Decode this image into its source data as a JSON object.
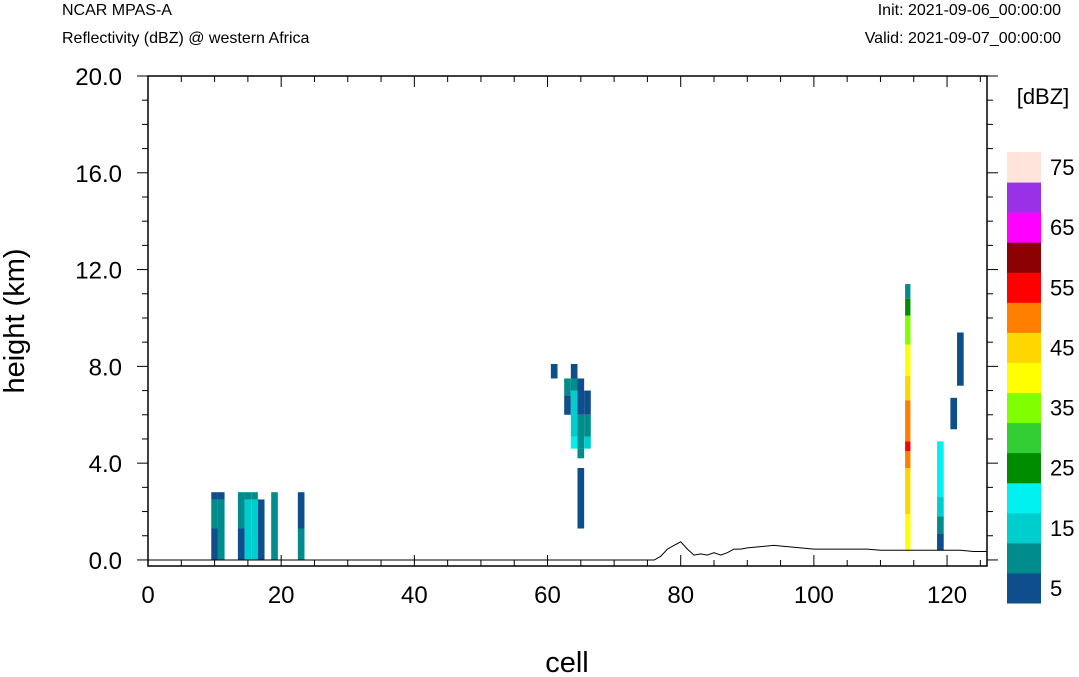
{
  "header": {
    "model": "NCAR MPAS-A",
    "field": "Reflectivity (dBZ) @ western Africa",
    "init": "Init: 2021-09-06_00:00:00",
    "valid": "Valid: 2021-09-07_00:00:00"
  },
  "chart_data": {
    "type": "heatmap",
    "xlabel": "cell",
    "ylabel": "height (km)",
    "xlim": [
      0,
      126
    ],
    "ylim": [
      -0.25,
      20.0
    ],
    "x_ticks": [
      "0",
      "20",
      "40",
      "60",
      "80",
      "100",
      "120"
    ],
    "y_ticks": [
      "0.0",
      "4.0",
      "8.0",
      "12.0",
      "16.0",
      "20.0"
    ],
    "colorbar": {
      "unit": "[dBZ]",
      "bins": [
        {
          "lo": 0,
          "hi": 5,
          "color": "#0f4e8c"
        },
        {
          "lo": 5,
          "hi": 10,
          "color": "#008c8c"
        },
        {
          "lo": 10,
          "hi": 15,
          "color": "#00cdcd"
        },
        {
          "lo": 15,
          "hi": 20,
          "color": "#00f0f0"
        },
        {
          "lo": 20,
          "hi": 25,
          "color": "#008c00"
        },
        {
          "lo": 25,
          "hi": 30,
          "color": "#32cd32"
        },
        {
          "lo": 30,
          "hi": 35,
          "color": "#7fff00"
        },
        {
          "lo": 35,
          "hi": 40,
          "color": "#ffff00"
        },
        {
          "lo": 40,
          "hi": 45,
          "color": "#ffd700"
        },
        {
          "lo": 45,
          "hi": 50,
          "color": "#ff7f00"
        },
        {
          "lo": 50,
          "hi": 55,
          "color": "#ff0000"
        },
        {
          "lo": 55,
          "hi": 60,
          "color": "#8b0000"
        },
        {
          "lo": 60,
          "hi": 65,
          "color": "#ff00ff"
        },
        {
          "lo": 65,
          "hi": 70,
          "color": "#9932e6"
        },
        {
          "lo": 70,
          "hi": 75,
          "color": "#ffe4dc"
        }
      ],
      "labels": [
        "5",
        "15",
        "25",
        "35",
        "45",
        "55",
        "65",
        "75"
      ]
    },
    "cells": [
      {
        "x0": 9.5,
        "x1": 10.5,
        "y0": 0.0,
        "y1": 1.3,
        "dbz": 2.5
      },
      {
        "x0": 9.5,
        "x1": 10.5,
        "y0": 1.3,
        "y1": 2.5,
        "dbz": 7.5
      },
      {
        "x0": 9.5,
        "x1": 10.5,
        "y0": 2.5,
        "y1": 2.8,
        "dbz": 2.5
      },
      {
        "x0": 10.5,
        "x1": 11.5,
        "y0": 0.0,
        "y1": 2.5,
        "dbz": 7.5
      },
      {
        "x0": 10.5,
        "x1": 11.5,
        "y0": 2.5,
        "y1": 2.8,
        "dbz": 2.5
      },
      {
        "x0": 13.5,
        "x1": 14.5,
        "y0": 0.0,
        "y1": 1.3,
        "dbz": 2.5
      },
      {
        "x0": 13.5,
        "x1": 14.5,
        "y0": 1.3,
        "y1": 2.8,
        "dbz": 7.5
      },
      {
        "x0": 14.5,
        "x1": 15.5,
        "y0": 0.0,
        "y1": 2.5,
        "dbz": 12.5
      },
      {
        "x0": 14.5,
        "x1": 15.5,
        "y0": 2.5,
        "y1": 2.8,
        "dbz": 7.5
      },
      {
        "x0": 15.5,
        "x1": 16.5,
        "y0": 0.0,
        "y1": 2.5,
        "dbz": 12.5
      },
      {
        "x0": 15.5,
        "x1": 16.5,
        "y0": 2.5,
        "y1": 2.8,
        "dbz": 7.5
      },
      {
        "x0": 16.5,
        "x1": 17.5,
        "y0": 0.0,
        "y1": 2.5,
        "dbz": 2.5
      },
      {
        "x0": 18.5,
        "x1": 19.5,
        "y0": 0.0,
        "y1": 2.8,
        "dbz": 7.5
      },
      {
        "x0": 22.5,
        "x1": 23.5,
        "y0": 0.0,
        "y1": 1.3,
        "dbz": 7.5
      },
      {
        "x0": 22.5,
        "x1": 23.5,
        "y0": 1.3,
        "y1": 2.8,
        "dbz": 2.5
      },
      {
        "x0": 60.5,
        "x1": 61.5,
        "y0": 7.5,
        "y1": 8.1,
        "dbz": 2.5
      },
      {
        "x0": 62.5,
        "x1": 63.5,
        "y0": 6.0,
        "y1": 6.8,
        "dbz": 2.5
      },
      {
        "x0": 62.5,
        "x1": 63.5,
        "y0": 6.8,
        "y1": 7.5,
        "dbz": 7.5
      },
      {
        "x0": 63.5,
        "x1": 64.5,
        "y0": 4.6,
        "y1": 5.1,
        "dbz": 17.5
      },
      {
        "x0": 63.5,
        "x1": 64.5,
        "y0": 5.1,
        "y1": 7.0,
        "dbz": 12.5
      },
      {
        "x0": 63.5,
        "x1": 64.5,
        "y0": 7.0,
        "y1": 7.5,
        "dbz": 7.5
      },
      {
        "x0": 63.5,
        "x1": 64.5,
        "y0": 7.5,
        "y1": 8.1,
        "dbz": 2.5
      },
      {
        "x0": 64.5,
        "x1": 65.5,
        "y0": 1.3,
        "y1": 3.8,
        "dbz": 2.5
      },
      {
        "x0": 64.5,
        "x1": 65.5,
        "y0": 4.2,
        "y1": 4.6,
        "dbz": 7.5
      },
      {
        "x0": 64.5,
        "x1": 65.5,
        "y0": 4.6,
        "y1": 6.0,
        "dbz": 7.5
      },
      {
        "x0": 64.5,
        "x1": 65.5,
        "y0": 6.0,
        "y1": 7.5,
        "dbz": 2.5
      },
      {
        "x0": 65.5,
        "x1": 66.5,
        "y0": 4.6,
        "y1": 5.1,
        "dbz": 12.5
      },
      {
        "x0": 65.5,
        "x1": 66.5,
        "y0": 5.1,
        "y1": 6.0,
        "dbz": 7.5
      },
      {
        "x0": 65.5,
        "x1": 66.5,
        "y0": 6.0,
        "y1": 7.0,
        "dbz": 2.5
      },
      {
        "x0": 113.7,
        "x1": 114.5,
        "y0": 0.4,
        "y1": 1.9,
        "dbz": 37.5
      },
      {
        "x0": 113.7,
        "x1": 114.5,
        "y0": 1.9,
        "y1": 3.8,
        "dbz": 42.5
      },
      {
        "x0": 113.7,
        "x1": 114.5,
        "y0": 3.8,
        "y1": 4.5,
        "dbz": 47.5
      },
      {
        "x0": 113.7,
        "x1": 114.5,
        "y0": 4.5,
        "y1": 4.9,
        "dbz": 52.5
      },
      {
        "x0": 113.7,
        "x1": 114.5,
        "y0": 4.9,
        "y1": 6.6,
        "dbz": 47.5
      },
      {
        "x0": 113.7,
        "x1": 114.5,
        "y0": 6.6,
        "y1": 7.6,
        "dbz": 42.5
      },
      {
        "x0": 113.7,
        "x1": 114.5,
        "y0": 7.6,
        "y1": 8.9,
        "dbz": 37.5
      },
      {
        "x0": 113.7,
        "x1": 114.5,
        "y0": 8.9,
        "y1": 10.1,
        "dbz": 32.5
      },
      {
        "x0": 113.7,
        "x1": 114.5,
        "y0": 10.1,
        "y1": 10.8,
        "dbz": 22.5
      },
      {
        "x0": 113.7,
        "x1": 114.5,
        "y0": 10.8,
        "y1": 11.4,
        "dbz": 7.5
      },
      {
        "x0": 118.5,
        "x1": 119.5,
        "y0": 0.4,
        "y1": 1.1,
        "dbz": 2.5
      },
      {
        "x0": 118.5,
        "x1": 119.5,
        "y0": 1.1,
        "y1": 1.8,
        "dbz": 7.5
      },
      {
        "x0": 118.5,
        "x1": 119.5,
        "y0": 1.8,
        "y1": 2.6,
        "dbz": 12.5
      },
      {
        "x0": 118.5,
        "x1": 119.5,
        "y0": 2.6,
        "y1": 4.9,
        "dbz": 17.5
      },
      {
        "x0": 120.5,
        "x1": 121.5,
        "y0": 5.4,
        "y1": 6.7,
        "dbz": 2.5
      },
      {
        "x0": 121.5,
        "x1": 122.5,
        "y0": 7.2,
        "y1": 9.4,
        "dbz": 2.5
      }
    ],
    "terrain": {
      "x": [
        0,
        76,
        77,
        78,
        79,
        80,
        81,
        82,
        83,
        84,
        85,
        86,
        87,
        88,
        89,
        90,
        92,
        94,
        96,
        98,
        100,
        102,
        104,
        106,
        108,
        110,
        112,
        114,
        116,
        118,
        120,
        122,
        124,
        126
      ],
      "y": [
        0.0,
        0.0,
        0.15,
        0.45,
        0.6,
        0.75,
        0.45,
        0.2,
        0.25,
        0.2,
        0.3,
        0.2,
        0.3,
        0.45,
        0.45,
        0.5,
        0.55,
        0.6,
        0.55,
        0.5,
        0.45,
        0.45,
        0.45,
        0.45,
        0.45,
        0.4,
        0.4,
        0.4,
        0.4,
        0.4,
        0.4,
        0.4,
        0.35,
        0.35
      ]
    }
  }
}
